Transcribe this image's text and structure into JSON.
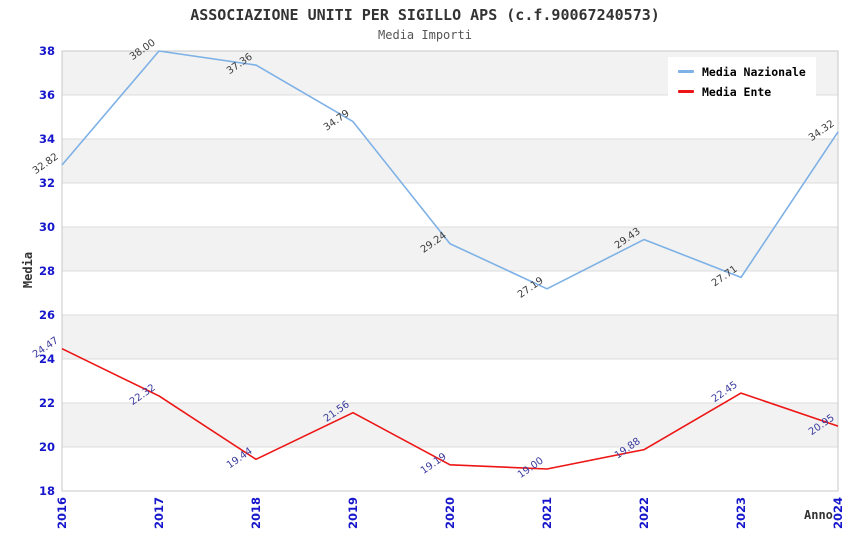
{
  "chart_data": {
    "type": "line",
    "title": "ASSOCIAZIONE UNITI PER SIGILLO APS (c.f.90067240573)",
    "subtitle": "Media Importi",
    "xlabel": "Anno",
    "ylabel": "Media",
    "categories": [
      "2016",
      "2017",
      "2018",
      "2019",
      "2020",
      "2021",
      "2022",
      "2023",
      "2024"
    ],
    "series": [
      {
        "name": "Media Nazionale",
        "color": "#7EB1E6",
        "label_color": "#3d3d3d",
        "values": [
          32.82,
          38.0,
          37.36,
          34.79,
          29.24,
          27.19,
          29.43,
          27.71,
          34.32
        ]
      },
      {
        "name": "Media Ente",
        "color": "#ED1515",
        "label_color": "#3b3b9e",
        "values": [
          24.47,
          22.32,
          19.44,
          21.56,
          19.19,
          19.0,
          19.88,
          22.45,
          20.95
        ]
      }
    ],
    "ylim": [
      18,
      38
    ],
    "ytick_step": 2,
    "grid": true,
    "legend_position": "top-right",
    "colors": {
      "tick_label": "#1616CC",
      "band_fill": "#F2F2F2",
      "grid_line": "#DCDCDC",
      "plot_border": "#C8C8C8",
      "title_text": "#333333"
    }
  }
}
